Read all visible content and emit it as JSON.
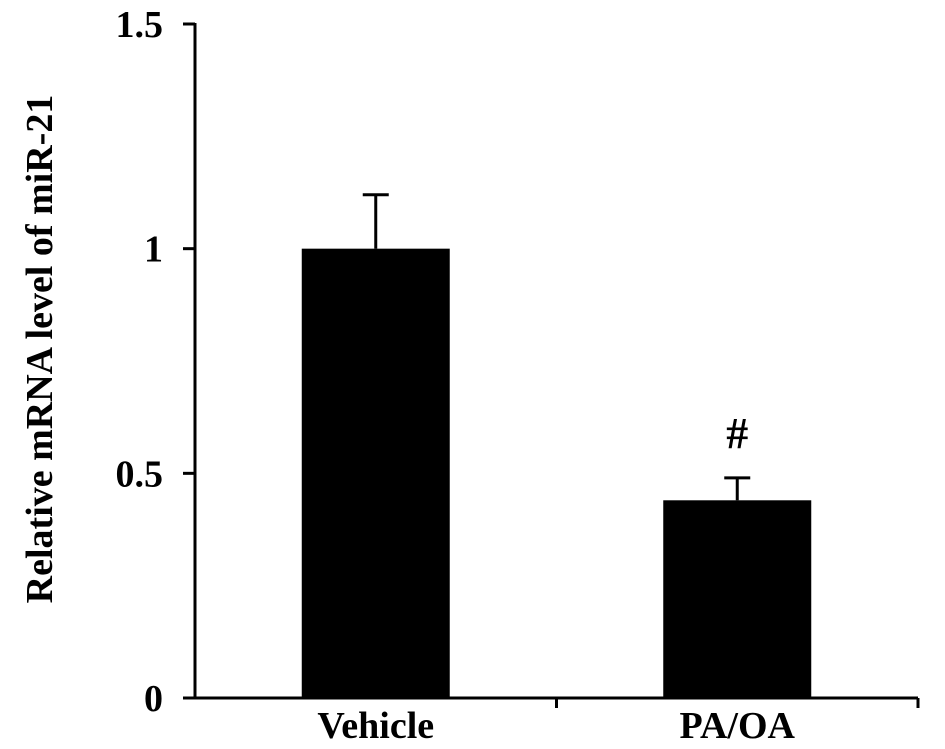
{
  "chart_data": {
    "type": "bar",
    "title": "",
    "xlabel": "",
    "ylabel": "Relative mRNA level of miR-21",
    "ylim": [
      0,
      1.5
    ],
    "y_ticks": [
      0,
      0.5,
      1,
      1.5
    ],
    "y_tick_labels": [
      "0",
      "0.5",
      "1",
      "1.5"
    ],
    "grid": false,
    "categories": [
      "Vehicle",
      "PA/OA"
    ],
    "values": [
      1.0,
      0.44
    ],
    "error_upper": [
      0.12,
      0.05
    ],
    "annotations": [
      "",
      "#"
    ],
    "bar_color": "#000000"
  }
}
